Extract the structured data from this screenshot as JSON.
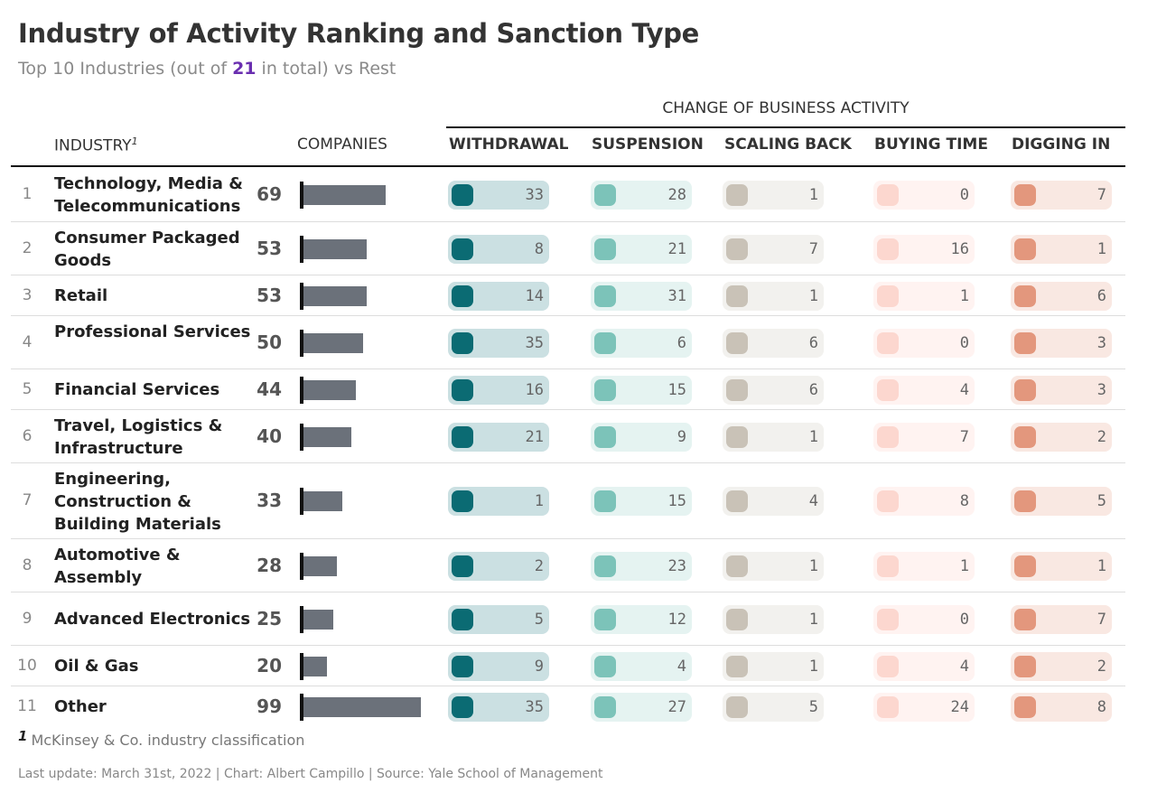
{
  "title": "Industry of Activity Ranking and Sanction Type",
  "subtitle": {
    "pre": "Top 10 Industries (out of ",
    "highlight": "21",
    "post": " in total) vs Rest"
  },
  "group_header": "CHANGE OF BUSINESS ACTIVITY",
  "headers": {
    "industry": "INDUSTRY",
    "industry_sup": "1",
    "companies": "COMPANIES",
    "withdrawal": "WITHDRAWAL",
    "suspension": "SUSPENSION",
    "scaling_back": "SCALING BACK",
    "buying_time": "BUYING TIME",
    "digging_in": "DIGGING IN"
  },
  "footnote": {
    "num": "1",
    "text": "McKinsey & Co. industry classification"
  },
  "source": "Last update: March 31st, 2022 | Chart: Albert Campillo | Source: Yale School of Management",
  "colors": {
    "withdrawal": "#0b6b73",
    "suspension": "#7cc3b9",
    "scaling_back": "#c9c2b7",
    "buying_time": "#fcd7cf",
    "digging_in": "#e3977d",
    "companies_bar": "#6b717a",
    "highlight": "#6a2fb0"
  },
  "chart_data": {
    "type": "table",
    "companies_max": 99,
    "rows": [
      {
        "rank": "1",
        "industry": "Technology, Media & Telecommunications",
        "companies": 69,
        "withdrawal": 33,
        "suspension": 28,
        "scaling_back": 1,
        "buying_time": 0,
        "digging_in": 7
      },
      {
        "rank": "2",
        "industry": "Consumer Packaged Goods",
        "companies": 53,
        "withdrawal": 8,
        "suspension": 21,
        "scaling_back": 7,
        "buying_time": 16,
        "digging_in": 1
      },
      {
        "rank": "3",
        "industry": "Retail",
        "companies": 53,
        "withdrawal": 14,
        "suspension": 31,
        "scaling_back": 1,
        "buying_time": 1,
        "digging_in": 6
      },
      {
        "rank": "4",
        "industry": "Professional Services",
        "companies": 50,
        "withdrawal": 35,
        "suspension": 6,
        "scaling_back": 6,
        "buying_time": 0,
        "digging_in": 3
      },
      {
        "rank": "5",
        "industry": "Financial Services",
        "companies": 44,
        "withdrawal": 16,
        "suspension": 15,
        "scaling_back": 6,
        "buying_time": 4,
        "digging_in": 3
      },
      {
        "rank": "6",
        "industry": "Travel, Logistics & Infrastructure",
        "companies": 40,
        "withdrawal": 21,
        "suspension": 9,
        "scaling_back": 1,
        "buying_time": 7,
        "digging_in": 2
      },
      {
        "rank": "7",
        "industry": "Engineering, Construction & Building Materials",
        "companies": 33,
        "withdrawal": 1,
        "suspension": 15,
        "scaling_back": 4,
        "buying_time": 8,
        "digging_in": 5
      },
      {
        "rank": "8",
        "industry": "Automotive & Assembly",
        "companies": 28,
        "withdrawal": 2,
        "suspension": 23,
        "scaling_back": 1,
        "buying_time": 1,
        "digging_in": 1
      },
      {
        "rank": "9",
        "industry": "Advanced Electronics",
        "companies": 25,
        "withdrawal": 5,
        "suspension": 12,
        "scaling_back": 1,
        "buying_time": 0,
        "digging_in": 7
      },
      {
        "rank": "10",
        "industry": "Oil & Gas",
        "companies": 20,
        "withdrawal": 9,
        "suspension": 4,
        "scaling_back": 1,
        "buying_time": 4,
        "digging_in": 2
      },
      {
        "rank": "11",
        "industry": "Other",
        "companies": 99,
        "withdrawal": 35,
        "suspension": 27,
        "scaling_back": 5,
        "buying_time": 24,
        "digging_in": 8
      }
    ]
  }
}
